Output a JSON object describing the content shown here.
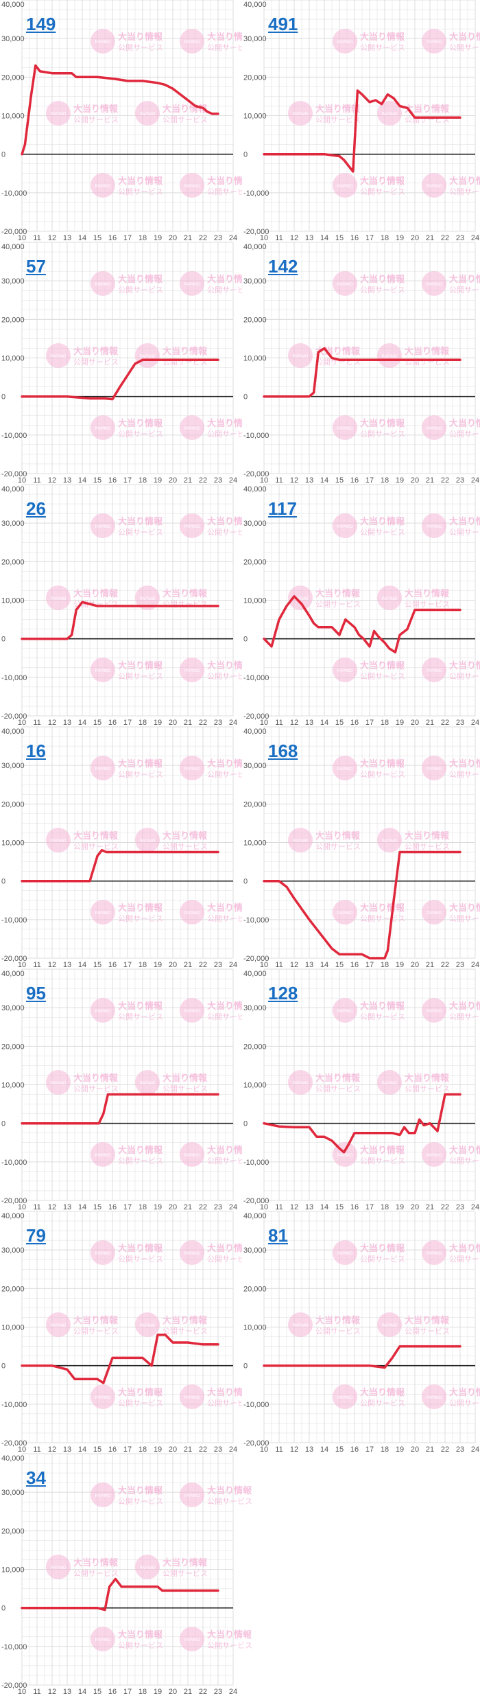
{
  "axis": {
    "y_tick_labels": [
      "40,000",
      "30,000",
      "20,000",
      "10,000",
      "0",
      "-10,000",
      "-20,000"
    ],
    "x_tick_labels": [
      "10",
      "11",
      "12",
      "13",
      "14",
      "15",
      "16",
      "17",
      "18",
      "19",
      "20",
      "21",
      "22",
      "23",
      "24"
    ]
  },
  "watermark": {
    "line1": "大当り情報",
    "line2": "公開サービス",
    "badge": "PAPIMO"
  },
  "colors": {
    "line": "#e0283c",
    "grid": "#dcdcdc",
    "zero": "#222222",
    "label": "#1a6fc4",
    "watermark": "#f5b4d7"
  },
  "chart_data": [
    {
      "type": "line",
      "title": "149",
      "x_range": [
        10,
        24
      ],
      "ylim": [
        -20000,
        40000
      ],
      "x": [
        10,
        10.2,
        10.6,
        10.9,
        11.2,
        12,
        13,
        13.3,
        13.6,
        14,
        15,
        16.2,
        17,
        18,
        19,
        19.5,
        20,
        21,
        21.5,
        22,
        22.3,
        22.6,
        23
      ],
      "y": [
        0,
        2500,
        15000,
        23000,
        21500,
        21000,
        21000,
        21000,
        20000,
        20000,
        20000,
        19500,
        19000,
        19000,
        18500,
        18000,
        17000,
        14000,
        12500,
        12000,
        11000,
        10500,
        10500
      ]
    },
    {
      "type": "line",
      "title": "491",
      "x_range": [
        10,
        24
      ],
      "ylim": [
        -20000,
        40000
      ],
      "x": [
        10,
        14,
        15,
        15.3,
        15.6,
        15.9,
        16.2,
        16.5,
        17,
        17.4,
        17.8,
        18.2,
        18.6,
        19,
        19.5,
        20,
        20.5,
        23
      ],
      "y": [
        0,
        0,
        -500,
        -1500,
        -3000,
        -4500,
        16500,
        15500,
        13500,
        14000,
        13000,
        15500,
        14500,
        12500,
        12000,
        9500,
        9500,
        9500
      ]
    },
    {
      "type": "line",
      "title": "57",
      "x_range": [
        10,
        24
      ],
      "ylim": [
        -20000,
        40000
      ],
      "x": [
        10,
        13,
        14.5,
        15.5,
        16,
        16.5,
        17,
        17.5,
        18,
        19,
        23
      ],
      "y": [
        0,
        0,
        -500,
        -500,
        -700,
        2500,
        5500,
        8500,
        9500,
        9500,
        9500
      ]
    },
    {
      "type": "line",
      "title": "142",
      "x_range": [
        10,
        24
      ],
      "ylim": [
        -20000,
        40000
      ],
      "x": [
        10,
        13,
        13.3,
        13.6,
        14,
        14.5,
        15,
        23
      ],
      "y": [
        0,
        0,
        1000,
        11500,
        12500,
        10000,
        9500,
        9500
      ]
    },
    {
      "type": "line",
      "title": "26",
      "x_range": [
        10,
        24
      ],
      "ylim": [
        -20000,
        40000
      ],
      "x": [
        10,
        13,
        13.3,
        13.6,
        14,
        14.5,
        15,
        23
      ],
      "y": [
        0,
        0,
        1000,
        7500,
        9500,
        9000,
        8500,
        8500
      ]
    },
    {
      "type": "line",
      "title": "117",
      "x_range": [
        10,
        24
      ],
      "ylim": [
        -20000,
        40000
      ],
      "x": [
        10,
        10.5,
        11,
        11.5,
        12,
        12.5,
        13,
        13.3,
        13.6,
        14,
        14.5,
        15,
        15.2,
        15.4,
        15.7,
        16,
        16.3,
        16.6,
        17,
        17.3,
        17.6,
        18,
        18.3,
        18.7,
        19,
        19.5,
        20,
        20.5,
        23
      ],
      "y": [
        0,
        -2000,
        5000,
        8500,
        11000,
        9000,
        6000,
        4000,
        3000,
        3000,
        3000,
        1000,
        3000,
        5000,
        4000,
        3000,
        1000,
        0,
        -2000,
        2000,
        500,
        -1000,
        -2500,
        -3500,
        1000,
        2500,
        7500,
        7500,
        7500
      ]
    },
    {
      "type": "line",
      "title": "16",
      "x_range": [
        10,
        24
      ],
      "ylim": [
        -20000,
        40000
      ],
      "x": [
        10,
        14.5,
        15,
        15.3,
        15.6,
        23
      ],
      "y": [
        0,
        0,
        6500,
        8000,
        7500,
        7500
      ]
    },
    {
      "type": "line",
      "title": "168",
      "x_range": [
        10,
        24
      ],
      "ylim": [
        -20000,
        40000
      ],
      "x": [
        10,
        11,
        11.5,
        12,
        13,
        14,
        14.5,
        15,
        16,
        16.5,
        17,
        17.5,
        18,
        18.2,
        18.6,
        19,
        23
      ],
      "y": [
        0,
        0,
        -1500,
        -4500,
        -10000,
        -15000,
        -17500,
        -19000,
        -19000,
        -19000,
        -20000,
        -20000,
        -20000,
        -18000,
        -5000,
        7500,
        7500
      ]
    },
    {
      "type": "line",
      "title": "95",
      "x_range": [
        10,
        24
      ],
      "ylim": [
        -20000,
        40000
      ],
      "x": [
        10,
        14.5,
        15.1,
        15.4,
        15.7,
        23
      ],
      "y": [
        0,
        0,
        0,
        2500,
        7500,
        7500
      ]
    },
    {
      "type": "line",
      "title": "128",
      "x_range": [
        10,
        24
      ],
      "ylim": [
        -20000,
        40000
      ],
      "x": [
        10,
        11,
        12,
        13,
        13.5,
        14,
        14.5,
        15,
        15.3,
        15.6,
        16,
        16.5,
        17,
        17.5,
        18,
        18.5,
        19,
        19.3,
        19.6,
        20,
        20.3,
        20.6,
        21,
        21.5,
        22,
        22.3,
        22.6,
        23
      ],
      "y": [
        0,
        -800,
        -1000,
        -1000,
        -3500,
        -3500,
        -4500,
        -6500,
        -7500,
        -5500,
        -2500,
        -2500,
        -2500,
        -2500,
        -2500,
        -2500,
        -3000,
        -1000,
        -2500,
        -2500,
        1000,
        -500,
        0,
        -2000,
        7500,
        7500,
        7500,
        7500
      ]
    },
    {
      "type": "line",
      "title": "79",
      "x_range": [
        10,
        24
      ],
      "ylim": [
        -20000,
        40000
      ],
      "x": [
        10,
        12,
        13,
        13.5,
        14,
        15,
        15.4,
        16,
        18,
        18.6,
        19,
        19.5,
        20,
        21,
        22,
        23
      ],
      "y": [
        0,
        0,
        -1000,
        -3500,
        -3500,
        -3500,
        -4500,
        2000,
        2000,
        0,
        8000,
        8000,
        6000,
        6000,
        5500,
        5500
      ]
    },
    {
      "type": "line",
      "title": "81",
      "x_range": [
        10,
        24
      ],
      "ylim": [
        -20000,
        40000
      ],
      "x": [
        10,
        17,
        18,
        18.5,
        19,
        19.5,
        20,
        23
      ],
      "y": [
        0,
        0,
        -500,
        2000,
        5000,
        5000,
        5000,
        5000
      ]
    },
    {
      "type": "line",
      "title": "34",
      "x_range": [
        10,
        24
      ],
      "ylim": [
        -20000,
        40000
      ],
      "x": [
        10,
        14,
        15,
        15.5,
        15.8,
        16.2,
        16.6,
        17,
        17.5,
        18,
        19,
        19.3,
        19.6,
        20,
        23
      ],
      "y": [
        0,
        0,
        0,
        -500,
        5500,
        7500,
        5500,
        5500,
        5500,
        5500,
        5500,
        4500,
        4500,
        4500,
        4500
      ]
    }
  ]
}
